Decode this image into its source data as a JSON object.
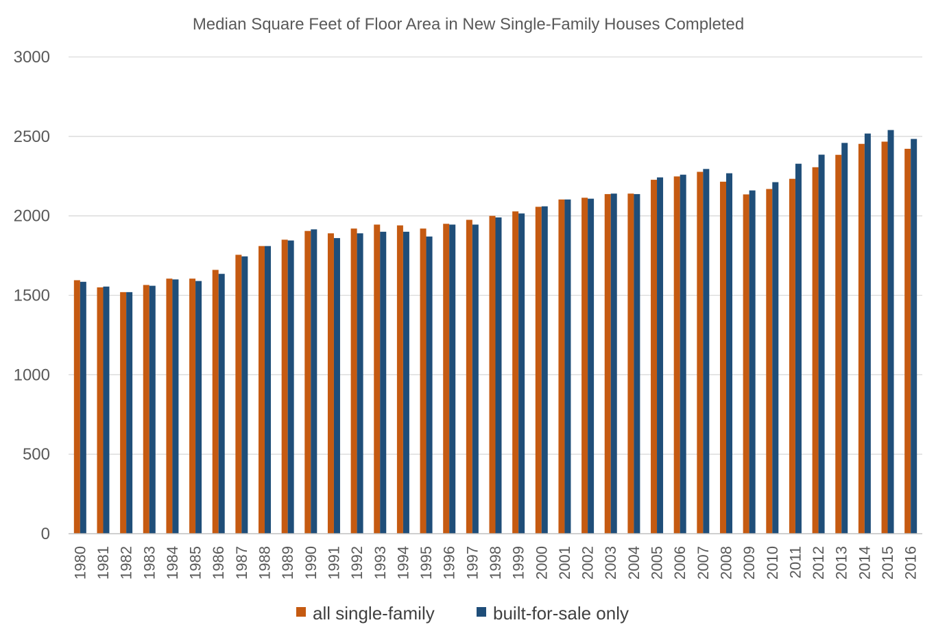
{
  "chart_data": {
    "type": "bar",
    "title": "Median Square Feet of Floor Area in New Single-Family Houses Completed",
    "xlabel": "",
    "ylabel": "",
    "ylim": [
      0,
      3000
    ],
    "yticks": [
      "0",
      "500",
      "1000",
      "1500",
      "2000",
      "2500",
      "3000"
    ],
    "grid": true,
    "legend_position": "bottom",
    "categories": [
      "1980",
      "1981",
      "1982",
      "1983",
      "1984",
      "1985",
      "1986",
      "1987",
      "1988",
      "1989",
      "1990",
      "1991",
      "1992",
      "1993",
      "1994",
      "1995",
      "1996",
      "1997",
      "1998",
      "1999",
      "2000",
      "2001",
      "2002",
      "2003",
      "2004",
      "2005",
      "2006",
      "2007",
      "2008",
      "2009",
      "2010",
      "2011",
      "2012",
      "2013",
      "2014",
      "2015",
      "2016"
    ],
    "series": [
      {
        "name": "all single-family",
        "color": "#c55a11",
        "values": [
          1595,
          1550,
          1520,
          1565,
          1605,
          1605,
          1660,
          1755,
          1810,
          1850,
          1905,
          1890,
          1920,
          1945,
          1940,
          1920,
          1950,
          1975,
          2000,
          2028,
          2057,
          2103,
          2114,
          2137,
          2140,
          2227,
          2248,
          2277,
          2215,
          2135,
          2169,
          2233,
          2306,
          2384,
          2453,
          2467,
          2422
        ]
      },
      {
        "name": "built-for-sale only",
        "color": "#1f4e79",
        "values": [
          1585,
          1555,
          1520,
          1560,
          1600,
          1590,
          1635,
          1745,
          1810,
          1845,
          1915,
          1860,
          1890,
          1900,
          1900,
          1870,
          1945,
          1945,
          1990,
          2015,
          2060,
          2103,
          2108,
          2140,
          2137,
          2242,
          2259,
          2295,
          2268,
          2160,
          2212,
          2328,
          2385,
          2459,
          2518,
          2540,
          2484
        ]
      }
    ]
  }
}
